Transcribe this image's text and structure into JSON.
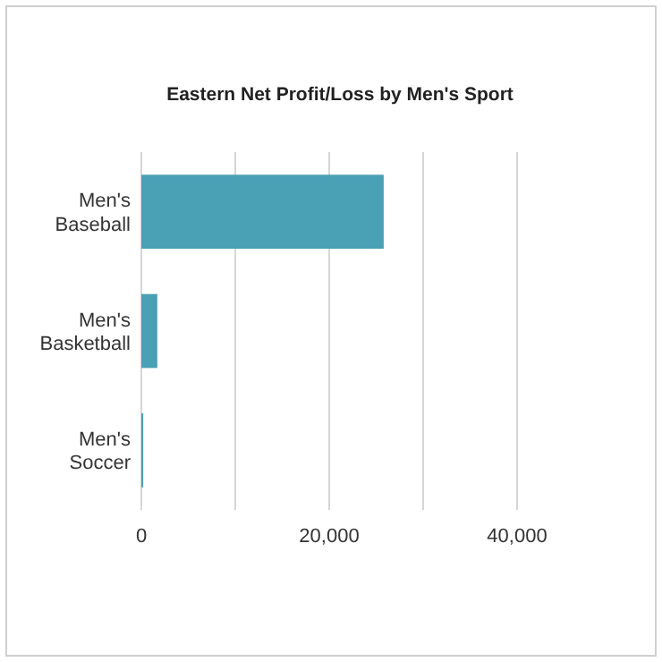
{
  "chart_data": {
    "type": "bar",
    "orientation": "horizontal",
    "title": "Eastern Net Profit/Loss by Men's Sport",
    "categories": [
      "Men's Baseball",
      "Men's Basketball",
      "Men's Soccer"
    ],
    "values": [
      25800,
      1700,
      200
    ],
    "color": "#4aa0b5",
    "xlim": [
      0,
      40000
    ],
    "xticks": [
      0,
      {
        "value": 10000,
        "label": null
      },
      {
        "value": 20000,
        "label": "20,000"
      },
      {
        "value": 30000,
        "label": null
      },
      {
        "value": 40000,
        "label": "40,000"
      }
    ],
    "grid": "x"
  }
}
